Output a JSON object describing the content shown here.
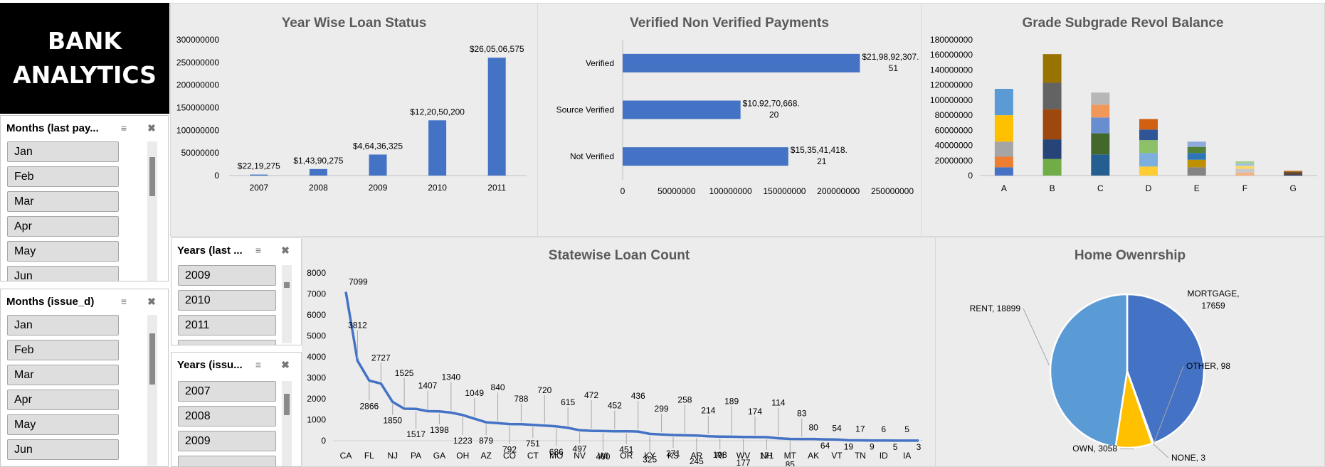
{
  "logo": {
    "text": "BANK\nANALYTICS"
  },
  "slicers": {
    "months_last_pay": {
      "title": "Months (last pay...",
      "items": [
        "Jan",
        "Feb",
        "Mar",
        "Apr",
        "May",
        "Jun"
      ]
    },
    "months_issue": {
      "title": "Months (issue_d)",
      "items": [
        "Jan",
        "Feb",
        "Mar",
        "Apr",
        "May",
        "Jun"
      ]
    },
    "years_last": {
      "title": "Years (last ...",
      "items": [
        "2009",
        "2010",
        "2011"
      ]
    },
    "years_issue": {
      "title": "Years (issu...",
      "items": [
        "2007",
        "2008",
        "2009"
      ]
    }
  },
  "chart_data": [
    {
      "type": "bar",
      "title": "Year Wise Loan Status",
      "categories": [
        "2007",
        "2008",
        "2009",
        "2010",
        "2011"
      ],
      "values": [
        2219275,
        14390275,
        46436325,
        122050200,
        260506575
      ],
      "data_labels": [
        "$22,19,275",
        "$1,43,90,275",
        "$4,64,36,325",
        "$12,20,50,200",
        "$26,05,06,575"
      ],
      "ylim": [
        0,
        300000000
      ],
      "yticks": [
        "0",
        "50000000",
        "100000000",
        "150000000",
        "200000000",
        "250000000",
        "300000000"
      ],
      "color": "#4472c4"
    },
    {
      "type": "bar",
      "orientation": "horizontal",
      "title": "Verified Non Verified Payments",
      "categories": [
        "Verified",
        "Source Verified",
        "Not Verified"
      ],
      "values": [
        219892307.51,
        109270668.2,
        153541418.21
      ],
      "data_labels": [
        [
          "$21,98,92,307.",
          "51"
        ],
        [
          "$10,92,70,668.",
          "20"
        ],
        [
          "$15,35,41,418.",
          "21"
        ]
      ],
      "xlim": [
        0,
        250000000
      ],
      "xticks": [
        "0",
        "50000000",
        "100000000",
        "150000000",
        "200000000",
        "250000000"
      ],
      "color": "#4472c4"
    },
    {
      "type": "bar",
      "stacked": true,
      "title": "Grade Subgrade Revol Balance",
      "categories": [
        "A",
        "B",
        "C",
        "D",
        "E",
        "F",
        "G"
      ],
      "ylim": [
        0,
        180000000
      ],
      "yticks": [
        "0",
        "20000000",
        "40000000",
        "60000000",
        "80000000",
        "100000000",
        "120000000",
        "140000000",
        "160000000",
        "180000000"
      ],
      "segments": [
        {
          "colors": [
            "#4472c4",
            "#ed7d31",
            "#a5a5a5",
            "#ffc000",
            "#5b9bd5"
          ],
          "values": [
            11000000,
            14000000,
            20000000,
            35000000,
            35000000
          ]
        },
        {
          "colors": [
            "#70ad47",
            "#264478",
            "#9e480e",
            "#636363",
            "#997300"
          ],
          "values": [
            22000000,
            26000000,
            40000000,
            35000000,
            38000000
          ]
        },
        {
          "colors": [
            "#255e91",
            "#43682b",
            "#698ed0",
            "#f1975a",
            "#b7b7b7"
          ],
          "values": [
            28000000,
            28000000,
            21000000,
            17000000,
            16000000
          ]
        },
        {
          "colors": [
            "#ffcd33",
            "#7cafdd",
            "#8cc168",
            "#2f5597",
            "#d26012"
          ],
          "values": [
            12000000,
            18000000,
            17000000,
            14000000,
            14000000
          ]
        },
        {
          "colors": [
            "#848484",
            "#bf9000",
            "#2e75b6",
            "#548235",
            "#8faadc"
          ],
          "values": [
            11000000,
            10000000,
            9000000,
            8000000,
            7000000
          ]
        },
        {
          "colors": [
            "#f4b183",
            "#c9c9c9",
            "#ffd966",
            "#9dc3e6",
            "#a9d18e"
          ],
          "values": [
            4000000,
            5000000,
            4000000,
            3000000,
            3000000
          ]
        },
        {
          "colors": [
            "#1f3864",
            "#843c0c",
            "#3b3838",
            "#7f6000",
            "#ed7d31"
          ],
          "values": [
            1500000,
            1500000,
            1500000,
            1000000,
            1000000
          ]
        }
      ]
    },
    {
      "type": "line",
      "title": "Statewise Loan Count",
      "x_labels": [
        "CA",
        "FL",
        "NJ",
        "PA",
        "GA",
        "OH",
        "AZ",
        "CO",
        "CT",
        "MO",
        "NV",
        "WI",
        "OR",
        "KY",
        "KS",
        "AR",
        "RI",
        "WV",
        "NH",
        "MT",
        "AK",
        "VT",
        "TN",
        "ID",
        "IA"
      ],
      "values": [
        7099,
        3812,
        2866,
        2727,
        1850,
        1525,
        1517,
        1407,
        1398,
        1340,
        1223,
        1049,
        879,
        840,
        792,
        788,
        751,
        720,
        686,
        615,
        497,
        472,
        460,
        452,
        451,
        436,
        325,
        299,
        271,
        258,
        245,
        214,
        198,
        189,
        177,
        174,
        171,
        114,
        85,
        83,
        80,
        64,
        54,
        19,
        17,
        9,
        6,
        5,
        5,
        3
      ],
      "ylim": [
        0,
        8000
      ],
      "yticks": [
        "0",
        "1000",
        "2000",
        "3000",
        "4000",
        "5000",
        "6000",
        "7000",
        "8000"
      ],
      "color": "#4472c4"
    },
    {
      "type": "pie",
      "title": "Home Owenrship",
      "slices": [
        {
          "label": "MORTGAGE",
          "value": 17659,
          "text": "MORTGAGE,",
          "text2": "17659",
          "color": "#4472c4"
        },
        {
          "label": "NONE",
          "value": 3,
          "text": "NONE, 3",
          "color": "#a5a5a5"
        },
        {
          "label": "OTHER",
          "value": 98,
          "text": "OTHER, 98",
          "color": "#ed7d31"
        },
        {
          "label": "OWN",
          "value": 3058,
          "text": "OWN, 3058",
          "color": "#ffc000"
        },
        {
          "label": "RENT",
          "value": 18899,
          "text": "RENT, 18899",
          "color": "#5b9bd5"
        }
      ]
    }
  ]
}
